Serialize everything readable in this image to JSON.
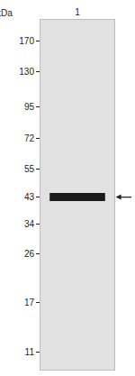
{
  "chart_data": {
    "type": "blot",
    "y_label": "kDa",
    "categories": [
      "1"
    ],
    "values": [
      43
    ],
    "color": "#1a1a1a",
    "log": "y",
    "ylim": [
      9.4,
      205
    ],
    "yticks": [
      170,
      130,
      95,
      72,
      55,
      43,
      34,
      26,
      17,
      11
    ]
  }
}
